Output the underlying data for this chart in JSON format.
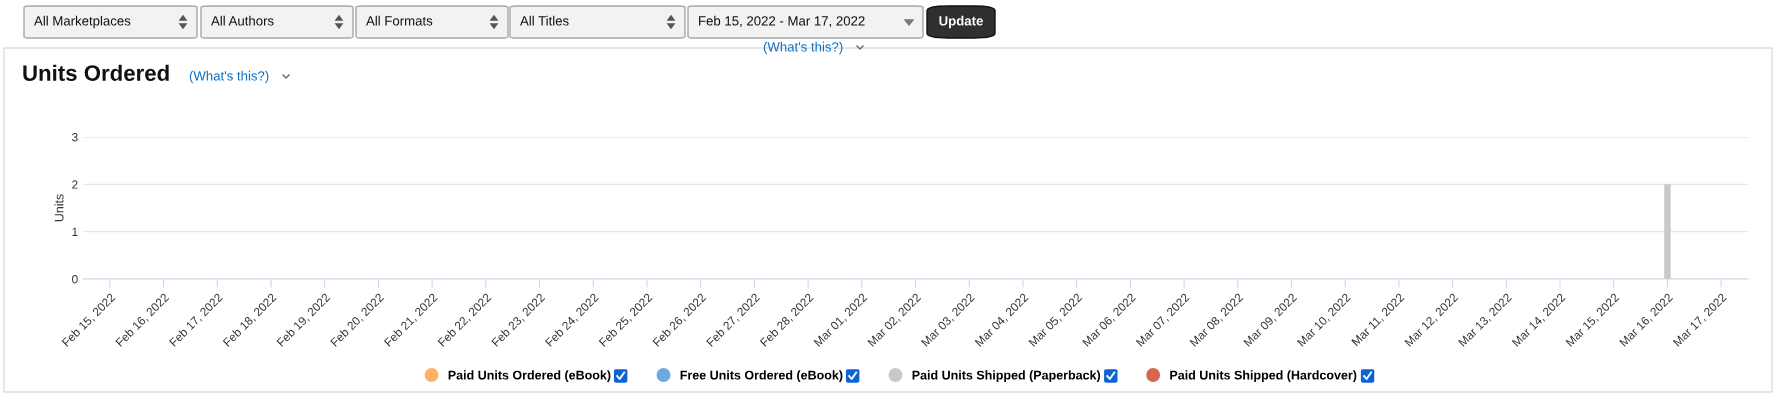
{
  "chart_data": {
    "type": "bar",
    "title": "Units Ordered",
    "ylabel": "Units",
    "categories": [
      "Feb 15, 2022",
      "Feb 16, 2022",
      "Feb 17, 2022",
      "Feb 18, 2022",
      "Feb 19, 2022",
      "Feb 20, 2022",
      "Feb 21, 2022",
      "Feb 22, 2022",
      "Feb 23, 2022",
      "Feb 24, 2022",
      "Feb 25, 2022",
      "Feb 26, 2022",
      "Feb 27, 2022",
      "Feb 28, 2022",
      "Mar 01, 2022",
      "Mar 02, 2022",
      "Mar 03, 2022",
      "Mar 04, 2022",
      "Mar 05, 2022",
      "Mar 06, 2022",
      "Mar 07, 2022",
      "Mar 08, 2022",
      "Mar 09, 2022",
      "Mar 10, 2022",
      "Mar 11, 2022",
      "Mar 12, 2022",
      "Mar 13, 2022",
      "Mar 14, 2022",
      "Mar 15, 2022",
      "Mar 16, 2022",
      "Mar 17, 2022"
    ],
    "series": [
      {
        "name": "Paid Units Ordered (eBook)",
        "color": "#ffb266",
        "values": [
          0,
          0,
          0,
          0,
          0,
          0,
          0,
          0,
          0,
          0,
          0,
          0,
          0,
          0,
          0,
          0,
          0,
          0,
          0,
          0,
          0,
          0,
          0,
          0,
          0,
          0,
          0,
          0,
          0,
          0,
          0
        ]
      },
      {
        "name": "Free Units Ordered (eBook)",
        "color": "#6fa8e0",
        "values": [
          0,
          0,
          0,
          0,
          0,
          0,
          0,
          0,
          0,
          0,
          0,
          0,
          0,
          0,
          0,
          0,
          0,
          0,
          0,
          0,
          0,
          0,
          0,
          0,
          0,
          0,
          0,
          0,
          0,
          0,
          0
        ]
      },
      {
        "name": "Paid Units Shipped (Paperback)",
        "color": "#c8c8c8",
        "values": [
          0,
          0,
          0,
          0,
          0,
          0,
          0,
          0,
          0,
          0,
          0,
          0,
          0,
          0,
          0,
          0,
          0,
          0,
          0,
          0,
          0,
          0,
          0,
          0,
          0,
          0,
          0,
          0,
          0,
          2,
          0
        ]
      },
      {
        "name": "Paid Units Shipped (Hardcover)",
        "color": "#d9674f",
        "values": [
          0,
          0,
          0,
          0,
          0,
          0,
          0,
          0,
          0,
          0,
          0,
          0,
          0,
          0,
          0,
          0,
          0,
          0,
          0,
          0,
          0,
          0,
          0,
          0,
          0,
          0,
          0,
          0,
          0,
          0,
          0
        ]
      }
    ],
    "ylim": [
      0,
      3
    ],
    "yticks": [
      0,
      1,
      2,
      3
    ],
    "grid": "y",
    "legend": "bottom",
    "annotations": [
      "All Marketplaces",
      "All Authors",
      "All Formats",
      "All Titles",
      "Feb 15, 2022 - Mar 17, 2022",
      "Update",
      "(What's this?)",
      "(What's this?)"
    ]
  }
}
